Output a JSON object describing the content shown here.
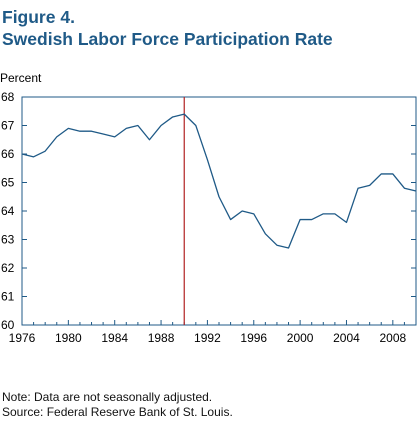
{
  "figure": {
    "label": "Figure 4.",
    "title": "Swedish Labor Force Participation Rate"
  },
  "notes": {
    "note": "Note: Data are not seasonally adjusted.",
    "source": "Source: Federal Reserve Bank of St. Louis."
  },
  "chart_data": {
    "type": "line",
    "title": "Swedish Labor Force Participation Rate",
    "xlabel": "",
    "ylabel": "Percent",
    "xlim": [
      1976,
      2010
    ],
    "ylim": [
      60,
      68
    ],
    "x_ticks": [
      1976,
      1980,
      1984,
      1988,
      1992,
      1996,
      2000,
      2004,
      2008
    ],
    "y_ticks": [
      60,
      61,
      62,
      63,
      64,
      65,
      66,
      67,
      68
    ],
    "grid": false,
    "line_color": "#1f5a87",
    "axis_color": "#1f5a87",
    "reference_line": {
      "x": 1990,
      "color": "#b22222"
    },
    "series": [
      {
        "x": [
          1976,
          1977,
          1978,
          1979,
          1980,
          1981,
          1982,
          1983,
          1984,
          1985,
          1986,
          1987,
          1988,
          1989,
          1990,
          1991,
          1992,
          1993,
          1994,
          1995,
          1996,
          1997,
          1998,
          1999,
          2000,
          2001,
          2002,
          2003,
          2004,
          2005,
          2006,
          2007,
          2008,
          2009,
          2010
        ],
        "values": [
          66.0,
          65.9,
          66.1,
          66.6,
          66.9,
          66.8,
          66.8,
          66.7,
          66.6,
          66.9,
          67.0,
          66.5,
          67.0,
          67.3,
          67.4,
          67.0,
          65.8,
          64.5,
          63.7,
          64.0,
          63.9,
          63.2,
          62.8,
          62.7,
          63.7,
          63.7,
          63.9,
          63.9,
          63.6,
          64.8,
          64.9,
          65.3,
          65.3,
          64.8,
          64.7
        ]
      }
    ]
  }
}
